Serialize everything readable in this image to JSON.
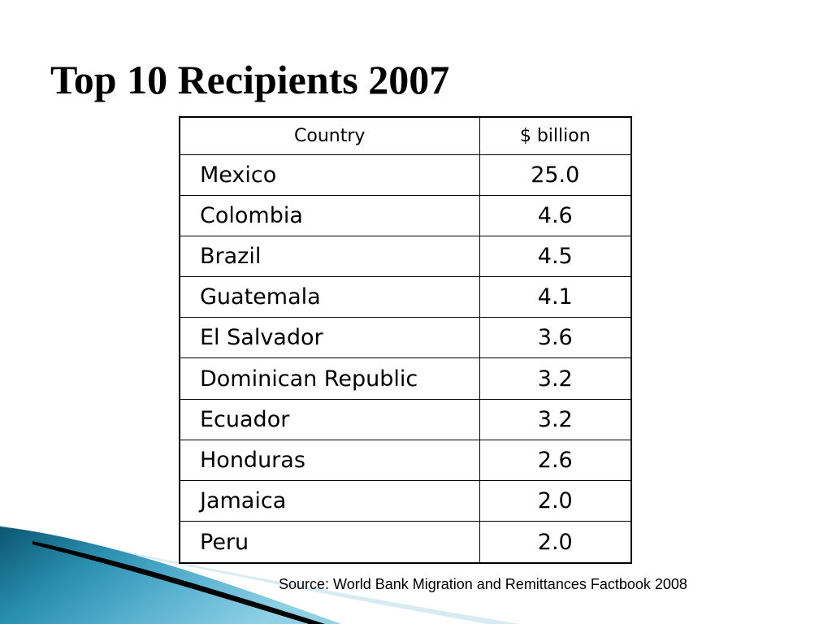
{
  "slide": {
    "title": "Top 10 Recipients 2007",
    "source": "Source: World Bank Migration and Remittances Factbook 2008"
  },
  "table": {
    "headers": [
      "Country",
      "$ billion"
    ],
    "rows": [
      {
        "country": "Mexico",
        "value": "25.0"
      },
      {
        "country": "Colombia",
        "value": "4.6"
      },
      {
        "country": "Brazil",
        "value": "4.5"
      },
      {
        "country": "Guatemala",
        "value": "4.1"
      },
      {
        "country": "El Salvador",
        "value": "3.6"
      },
      {
        "country": "Dominican Republic",
        "value": "3.2"
      },
      {
        "country": "Ecuador",
        "value": "3.2"
      },
      {
        "country": "Honduras",
        "value": "2.6"
      },
      {
        "country": "Jamaica",
        "value": "2.0"
      },
      {
        "country": "Peru",
        "value": "2.0"
      }
    ]
  },
  "colors": {
    "swoosh_dark": "#0b5670",
    "swoosh_mid": "#2a8fb0",
    "swoosh_light": "#8fd0e4",
    "swoosh_line": "#000000",
    "swoosh_pale": "#cfe6ef"
  }
}
